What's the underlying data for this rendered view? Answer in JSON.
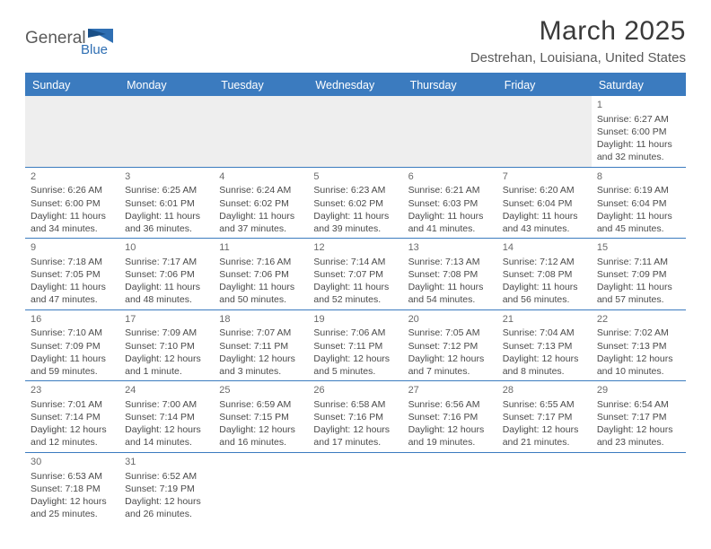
{
  "brand": {
    "name1": "General",
    "name2": "Blue",
    "color_blue": "#3b7bbf",
    "color_gray": "#5a5a5a"
  },
  "title": "March 2025",
  "location": "Destrehan, Louisiana, United States",
  "columns": [
    "Sunday",
    "Monday",
    "Tuesday",
    "Wednesday",
    "Thursday",
    "Friday",
    "Saturday"
  ],
  "header_bg": "#3b7bbf",
  "header_fg": "#ffffff",
  "border_color": "#3b7bbf",
  "empty_bg": "#eeeeee",
  "weeks": [
    [
      null,
      null,
      null,
      null,
      null,
      null,
      {
        "n": "1",
        "sunrise": "Sunrise: 6:27 AM",
        "sunset": "Sunset: 6:00 PM",
        "d1": "Daylight: 11 hours",
        "d2": "and 32 minutes."
      }
    ],
    [
      {
        "n": "2",
        "sunrise": "Sunrise: 6:26 AM",
        "sunset": "Sunset: 6:00 PM",
        "d1": "Daylight: 11 hours",
        "d2": "and 34 minutes."
      },
      {
        "n": "3",
        "sunrise": "Sunrise: 6:25 AM",
        "sunset": "Sunset: 6:01 PM",
        "d1": "Daylight: 11 hours",
        "d2": "and 36 minutes."
      },
      {
        "n": "4",
        "sunrise": "Sunrise: 6:24 AM",
        "sunset": "Sunset: 6:02 PM",
        "d1": "Daylight: 11 hours",
        "d2": "and 37 minutes."
      },
      {
        "n": "5",
        "sunrise": "Sunrise: 6:23 AM",
        "sunset": "Sunset: 6:02 PM",
        "d1": "Daylight: 11 hours",
        "d2": "and 39 minutes."
      },
      {
        "n": "6",
        "sunrise": "Sunrise: 6:21 AM",
        "sunset": "Sunset: 6:03 PM",
        "d1": "Daylight: 11 hours",
        "d2": "and 41 minutes."
      },
      {
        "n": "7",
        "sunrise": "Sunrise: 6:20 AM",
        "sunset": "Sunset: 6:04 PM",
        "d1": "Daylight: 11 hours",
        "d2": "and 43 minutes."
      },
      {
        "n": "8",
        "sunrise": "Sunrise: 6:19 AM",
        "sunset": "Sunset: 6:04 PM",
        "d1": "Daylight: 11 hours",
        "d2": "and 45 minutes."
      }
    ],
    [
      {
        "n": "9",
        "sunrise": "Sunrise: 7:18 AM",
        "sunset": "Sunset: 7:05 PM",
        "d1": "Daylight: 11 hours",
        "d2": "and 47 minutes."
      },
      {
        "n": "10",
        "sunrise": "Sunrise: 7:17 AM",
        "sunset": "Sunset: 7:06 PM",
        "d1": "Daylight: 11 hours",
        "d2": "and 48 minutes."
      },
      {
        "n": "11",
        "sunrise": "Sunrise: 7:16 AM",
        "sunset": "Sunset: 7:06 PM",
        "d1": "Daylight: 11 hours",
        "d2": "and 50 minutes."
      },
      {
        "n": "12",
        "sunrise": "Sunrise: 7:14 AM",
        "sunset": "Sunset: 7:07 PM",
        "d1": "Daylight: 11 hours",
        "d2": "and 52 minutes."
      },
      {
        "n": "13",
        "sunrise": "Sunrise: 7:13 AM",
        "sunset": "Sunset: 7:08 PM",
        "d1": "Daylight: 11 hours",
        "d2": "and 54 minutes."
      },
      {
        "n": "14",
        "sunrise": "Sunrise: 7:12 AM",
        "sunset": "Sunset: 7:08 PM",
        "d1": "Daylight: 11 hours",
        "d2": "and 56 minutes."
      },
      {
        "n": "15",
        "sunrise": "Sunrise: 7:11 AM",
        "sunset": "Sunset: 7:09 PM",
        "d1": "Daylight: 11 hours",
        "d2": "and 57 minutes."
      }
    ],
    [
      {
        "n": "16",
        "sunrise": "Sunrise: 7:10 AM",
        "sunset": "Sunset: 7:09 PM",
        "d1": "Daylight: 11 hours",
        "d2": "and 59 minutes."
      },
      {
        "n": "17",
        "sunrise": "Sunrise: 7:09 AM",
        "sunset": "Sunset: 7:10 PM",
        "d1": "Daylight: 12 hours",
        "d2": "and 1 minute."
      },
      {
        "n": "18",
        "sunrise": "Sunrise: 7:07 AM",
        "sunset": "Sunset: 7:11 PM",
        "d1": "Daylight: 12 hours",
        "d2": "and 3 minutes."
      },
      {
        "n": "19",
        "sunrise": "Sunrise: 7:06 AM",
        "sunset": "Sunset: 7:11 PM",
        "d1": "Daylight: 12 hours",
        "d2": "and 5 minutes."
      },
      {
        "n": "20",
        "sunrise": "Sunrise: 7:05 AM",
        "sunset": "Sunset: 7:12 PM",
        "d1": "Daylight: 12 hours",
        "d2": "and 7 minutes."
      },
      {
        "n": "21",
        "sunrise": "Sunrise: 7:04 AM",
        "sunset": "Sunset: 7:13 PM",
        "d1": "Daylight: 12 hours",
        "d2": "and 8 minutes."
      },
      {
        "n": "22",
        "sunrise": "Sunrise: 7:02 AM",
        "sunset": "Sunset: 7:13 PM",
        "d1": "Daylight: 12 hours",
        "d2": "and 10 minutes."
      }
    ],
    [
      {
        "n": "23",
        "sunrise": "Sunrise: 7:01 AM",
        "sunset": "Sunset: 7:14 PM",
        "d1": "Daylight: 12 hours",
        "d2": "and 12 minutes."
      },
      {
        "n": "24",
        "sunrise": "Sunrise: 7:00 AM",
        "sunset": "Sunset: 7:14 PM",
        "d1": "Daylight: 12 hours",
        "d2": "and 14 minutes."
      },
      {
        "n": "25",
        "sunrise": "Sunrise: 6:59 AM",
        "sunset": "Sunset: 7:15 PM",
        "d1": "Daylight: 12 hours",
        "d2": "and 16 minutes."
      },
      {
        "n": "26",
        "sunrise": "Sunrise: 6:58 AM",
        "sunset": "Sunset: 7:16 PM",
        "d1": "Daylight: 12 hours",
        "d2": "and 17 minutes."
      },
      {
        "n": "27",
        "sunrise": "Sunrise: 6:56 AM",
        "sunset": "Sunset: 7:16 PM",
        "d1": "Daylight: 12 hours",
        "d2": "and 19 minutes."
      },
      {
        "n": "28",
        "sunrise": "Sunrise: 6:55 AM",
        "sunset": "Sunset: 7:17 PM",
        "d1": "Daylight: 12 hours",
        "d2": "and 21 minutes."
      },
      {
        "n": "29",
        "sunrise": "Sunrise: 6:54 AM",
        "sunset": "Sunset: 7:17 PM",
        "d1": "Daylight: 12 hours",
        "d2": "and 23 minutes."
      }
    ],
    [
      {
        "n": "30",
        "sunrise": "Sunrise: 6:53 AM",
        "sunset": "Sunset: 7:18 PM",
        "d1": "Daylight: 12 hours",
        "d2": "and 25 minutes."
      },
      {
        "n": "31",
        "sunrise": "Sunrise: 6:52 AM",
        "sunset": "Sunset: 7:19 PM",
        "d1": "Daylight: 12 hours",
        "d2": "and 26 minutes."
      },
      null,
      null,
      null,
      null,
      null
    ]
  ]
}
